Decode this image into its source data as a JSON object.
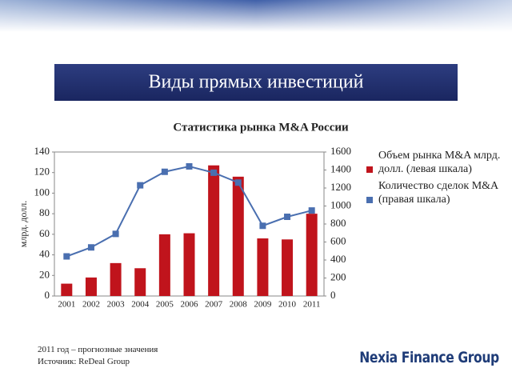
{
  "slide_title": "Виды прямых инвестиций",
  "notes": [
    "2011 год – прогнозные значения",
    "Источник: ReDeal Group"
  ],
  "brand": "Nexia Finance Group",
  "chart_data": {
    "type": "bar",
    "title": "Статистика рынка M&A России",
    "y_label": "млрд. долл.",
    "categories": [
      "2001",
      "2002",
      "2003",
      "2004",
      "2005",
      "2006",
      "2007",
      "2008",
      "2009",
      "2010",
      "2011"
    ],
    "series": [
      {
        "name": "Объем рынка M&A млрд. долл. (левая шкала)",
        "type": "bar",
        "color": "#c0141c",
        "values": [
          12,
          18,
          32,
          27,
          60,
          61,
          127,
          116,
          56,
          55,
          80
        ]
      },
      {
        "name": "Количество сделок M&A (правая шкала)",
        "type": "line",
        "axis": "y2",
        "color": "#4a6fb0",
        "values": [
          440,
          540,
          690,
          1230,
          1380,
          1440,
          1370,
          1260,
          780,
          880,
          950
        ]
      }
    ],
    "ylim": [
      0,
      140
    ],
    "yticks": [
      0,
      20,
      40,
      60,
      80,
      100,
      120,
      140
    ],
    "y2lim": [
      0,
      1600
    ],
    "y2ticks": [
      0,
      200,
      400,
      600,
      800,
      1000,
      1200,
      1400,
      1600
    ],
    "grid": false
  }
}
